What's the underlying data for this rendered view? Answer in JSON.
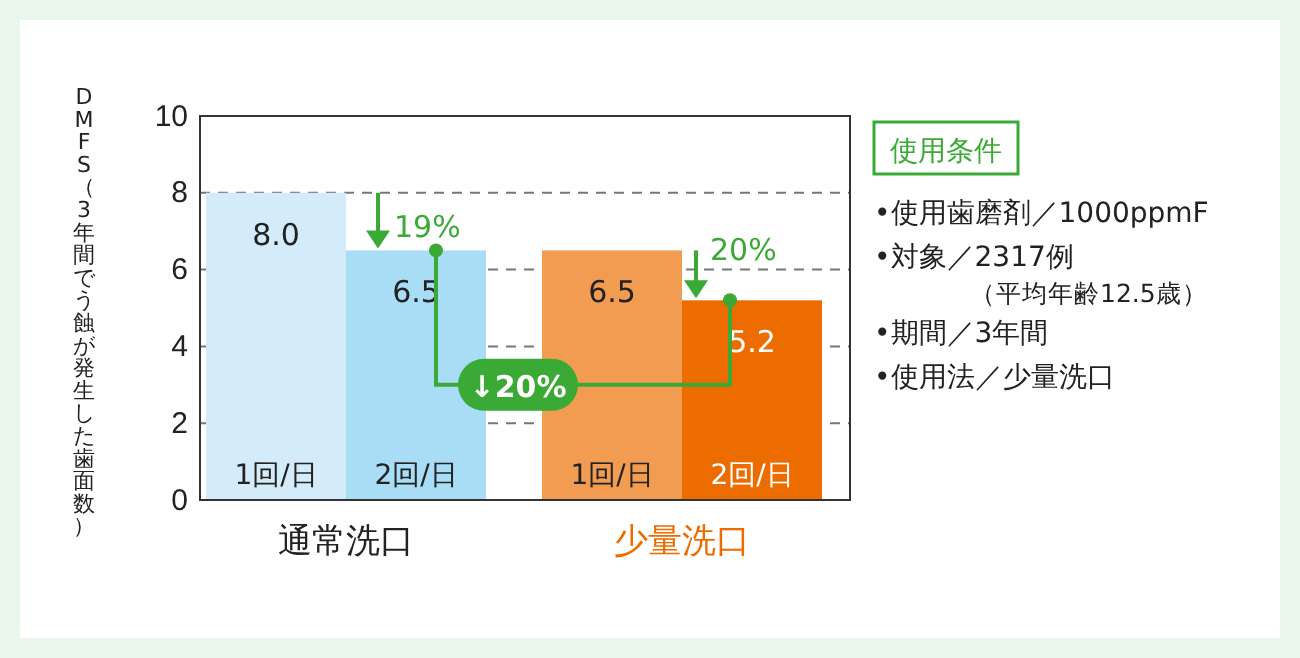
{
  "chart_data": {
    "type": "bar",
    "categories": [
      "1回/日",
      "2回/日",
      "1回/日",
      "2回/日"
    ],
    "values": [
      8.0,
      6.5,
      6.5,
      5.2
    ],
    "colors": [
      "#d4ecf9",
      "#a9dcf5",
      "#f29c52",
      "#ec6c00"
    ],
    "value_labels": [
      "8.0",
      "6.5",
      "6.5",
      "5.2"
    ],
    "ylabel": "DMFS（3年間でう蝕が発生した歯面数）",
    "ylim": [
      0,
      10
    ],
    "yticks": [
      0,
      2,
      4,
      6,
      8,
      10
    ],
    "grid": "y",
    "annotations": [
      "19%",
      "20%",
      "↓20%",
      "通常洗口",
      "少量洗口",
      "使用条件",
      "•使用歯磨剤／1000ppmF",
      "•対象／2317例",
      "（平均年齢12.5歳）",
      "•期間／3年間",
      "•使用法／少量洗口"
    ]
  }
}
